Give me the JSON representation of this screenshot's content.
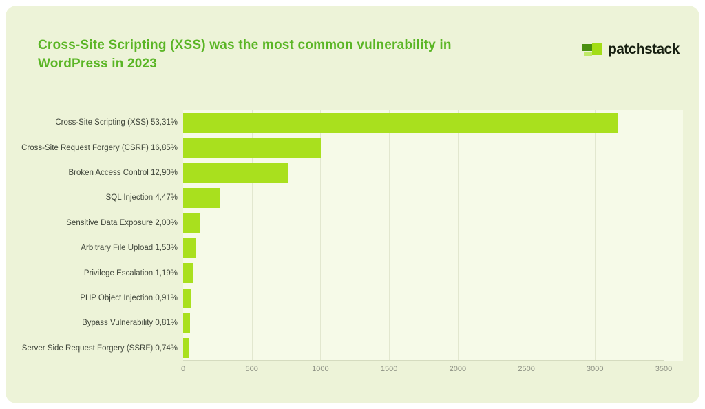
{
  "page": {
    "background": "#ffffff",
    "card_background": "#edf3d8"
  },
  "header": {
    "title": "Cross-Site Scripting (XSS) was the most common vulnerability in WordPress in 2023",
    "title_color": "#5ab525",
    "logo": {
      "text": "patchstack"
    }
  },
  "chart_data": {
    "type": "bar",
    "orientation": "horizontal",
    "title": "Cross-Site Scripting (XSS) was the most common vulnerability in WordPress in 2023",
    "categories": [
      "Cross-Site Scripting (XSS)",
      "Cross-Site Request Forgery (CSRF)",
      "Broken Access Control",
      "SQL Injection",
      "Sensitive Data Exposure",
      "Arbitrary File Upload",
      "Privilege Escalation",
      "PHP Object Injection",
      "Bypass Vulnerability",
      "Server Side Request Forgery (SSRF)"
    ],
    "percents": [
      "53,31%",
      "16,85%",
      "12,90%",
      "4,47%",
      "2,00%",
      "1,53%",
      "1,19%",
      "0,91%",
      "0,81%",
      "0,74%"
    ],
    "values": [
      3171,
      1002,
      767,
      266,
      119,
      91,
      71,
      54,
      48,
      44
    ],
    "xlabel": "",
    "ylabel": "",
    "xlim": [
      0,
      3500
    ],
    "x_ticks": [
      0,
      500,
      1000,
      1500,
      2000,
      2500,
      3000,
      3500
    ],
    "grid": true,
    "legend": false,
    "bar_color": "#a9e01e",
    "plot_background": "#f6fae8",
    "gridline_color": "#e2e7cf"
  }
}
